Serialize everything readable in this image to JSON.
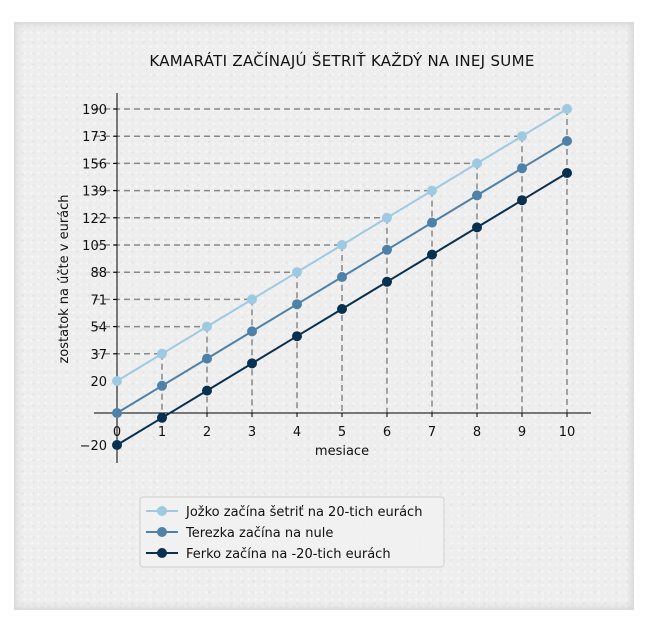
{
  "chart_data": {
    "type": "line",
    "title": "KAMARÁTI ZAČÍNAJÚ ŠETRIŤ KAŽDÝ NA INEJ SUME",
    "xlabel": "mesiace",
    "ylabel": "zostatok na účte v eurách",
    "x": [
      0,
      1,
      2,
      3,
      4,
      5,
      6,
      7,
      8,
      9,
      10
    ],
    "xticks": [
      "0",
      "1",
      "2",
      "3",
      "4",
      "5",
      "6",
      "7",
      "8",
      "9",
      "10"
    ],
    "yticks": [
      -20,
      20,
      37,
      54,
      71,
      88,
      105,
      122,
      139,
      156,
      173,
      190
    ],
    "ylim": [
      -31,
      202
    ],
    "xlim": [
      -0.1,
      10.5
    ],
    "legend_position": "bottom-left",
    "grid": "dashed guides to first series points",
    "series": [
      {
        "name": "Jožko začína šetriť na 20-tich eurách",
        "color": "#9ecae1",
        "values": [
          20,
          37,
          54,
          71,
          88,
          105,
          122,
          139,
          156,
          173,
          190
        ]
      },
      {
        "name": "Terezka začína na nule",
        "color": "#4f81a8",
        "values": [
          0,
          17,
          34,
          51,
          68,
          85,
          102,
          119,
          136,
          153,
          170
        ]
      },
      {
        "name": "Ferko začína na -20-tich eurách",
        "color": "#08304f",
        "values": [
          -20,
          -3,
          14,
          31,
          48,
          65,
          82,
          99,
          116,
          133,
          150
        ]
      }
    ]
  }
}
